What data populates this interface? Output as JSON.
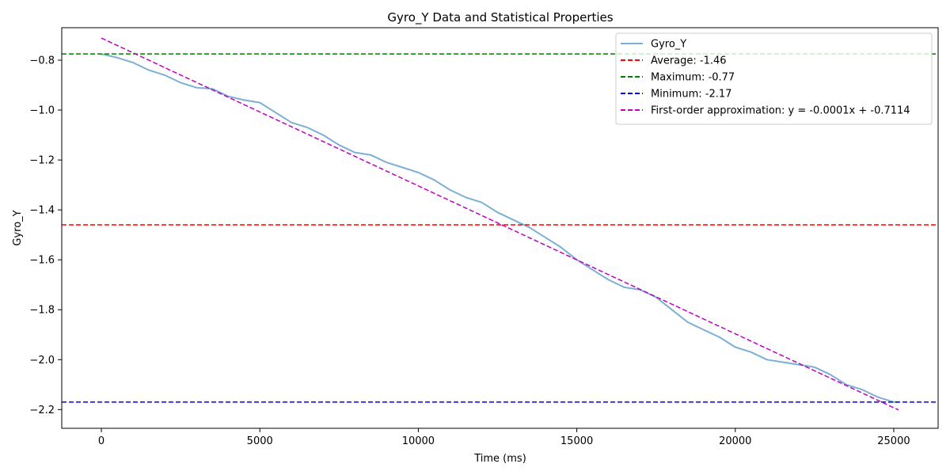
{
  "chart_data": {
    "type": "line",
    "title": "Gyro_Y Data and Statistical Properties",
    "xlabel": "Time (ms)",
    "ylabel": "Gyro_Y",
    "xlim": [
      -1250,
      26400
    ],
    "ylim": [
      -2.275,
      -0.67
    ],
    "x_ticks": [
      0,
      5000,
      10000,
      15000,
      20000,
      25000
    ],
    "x_tick_labels": [
      "0",
      "5000",
      "10000",
      "15000",
      "20000",
      "25000"
    ],
    "y_ticks": [
      -0.8,
      -1.0,
      -1.2,
      -1.4,
      -1.6,
      -1.8,
      -2.0,
      -2.2
    ],
    "y_tick_labels": [
      "−0.8",
      "−1.0",
      "−1.2",
      "−1.4",
      "−1.6",
      "−1.8",
      "−2.0",
      "−2.2"
    ],
    "grid": false,
    "legend_position": "top-right",
    "series": [
      {
        "name": "Gyro_Y",
        "color": "#7bafd4",
        "style": "solid",
        "x": [
          0,
          500,
          1000,
          1500,
          2000,
          2500,
          3000,
          3500,
          4000,
          4500,
          5000,
          5500,
          6000,
          6500,
          7000,
          7500,
          8000,
          8500,
          9000,
          9500,
          10000,
          10500,
          11000,
          11500,
          12000,
          12500,
          13000,
          13500,
          14000,
          14500,
          15000,
          15500,
          16000,
          16500,
          17000,
          17500,
          18000,
          18500,
          19000,
          19500,
          20000,
          20500,
          21000,
          21500,
          22000,
          22500,
          23000,
          23500,
          24000,
          24500,
          25000,
          25150
        ],
        "y": [
          -0.775,
          -0.79,
          -0.81,
          -0.84,
          -0.86,
          -0.89,
          -0.91,
          -0.915,
          -0.945,
          -0.96,
          -0.97,
          -1.01,
          -1.05,
          -1.07,
          -1.1,
          -1.14,
          -1.17,
          -1.18,
          -1.21,
          -1.23,
          -1.25,
          -1.28,
          -1.32,
          -1.35,
          -1.37,
          -1.41,
          -1.44,
          -1.47,
          -1.51,
          -1.55,
          -1.6,
          -1.64,
          -1.68,
          -1.71,
          -1.72,
          -1.75,
          -1.8,
          -1.85,
          -1.88,
          -1.91,
          -1.95,
          -1.97,
          -2.0,
          -2.01,
          -2.02,
          -2.03,
          -2.06,
          -2.1,
          -2.12,
          -2.15,
          -2.17,
          -2.17
        ]
      },
      {
        "name": "First-order approximation: y = -0.0001x + -0.7114",
        "color": "#bf00bf",
        "style": "dashed",
        "x": [
          0,
          25150
        ],
        "y": [
          -0.7114,
          -2.2014
        ]
      }
    ],
    "hlines": [
      {
        "name": "Average: -1.46",
        "value": -1.46,
        "color": "#ff0000"
      },
      {
        "name": "Maximum: -0.77",
        "value": -0.775,
        "color": "#008000"
      },
      {
        "name": "Minimum: -2.17",
        "value": -2.17,
        "color": "#0000ff"
      }
    ],
    "legend": [
      {
        "label": "Gyro_Y",
        "color": "#7bafd4",
        "style": "solid"
      },
      {
        "label": "Average: -1.46",
        "color": "#ff0000",
        "style": "dashed"
      },
      {
        "label": "Maximum: -0.77",
        "color": "#008000",
        "style": "dashed"
      },
      {
        "label": "Minimum: -2.17",
        "color": "#0000ff",
        "style": "dashed"
      },
      {
        "label": "First-order approximation: y = -0.0001x + -0.7114",
        "color": "#bf00bf",
        "style": "dashed"
      }
    ]
  }
}
